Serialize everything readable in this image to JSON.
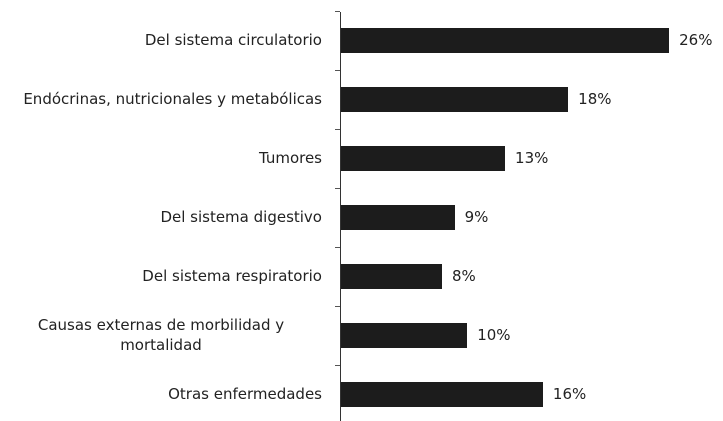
{
  "chart_data": {
    "type": "bar",
    "orientation": "horizontal",
    "categories": [
      "Del sistema circulatorio",
      "Endócrinas, nutricionales y metabólicas",
      "Tumores",
      "Del sistema digestivo",
      "Del sistema respiratorio",
      "Causas externas de morbilidad y mortalidad",
      "Otras enfermedades"
    ],
    "values": [
      26,
      18,
      13,
      9,
      8,
      10,
      16
    ],
    "value_labels": [
      "26%",
      "18%",
      "13%",
      "9%",
      "8%",
      "10%",
      "16%"
    ],
    "color": "#1c1c1c"
  }
}
